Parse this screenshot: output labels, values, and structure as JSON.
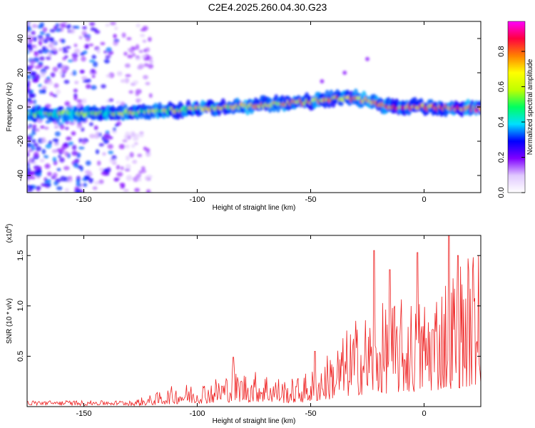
{
  "title": "C2E4.2025.260.04.30.G23",
  "chart_data": [
    {
      "type": "heatmap",
      "xlabel": "Height of straight line (km)",
      "ylabel": "Frequency (Hz)",
      "xlim": [
        -175,
        25
      ],
      "ylim": [
        -50,
        50
      ],
      "xticks": [
        -150,
        -100,
        -50,
        0
      ],
      "yticks": [
        -40,
        -20,
        0,
        20,
        40
      ],
      "ridge": [
        {
          "x": -175,
          "y": -4
        },
        {
          "x": -150,
          "y": -4
        },
        {
          "x": -125,
          "y": -3
        },
        {
          "x": -100,
          "y": -1
        },
        {
          "x": -75,
          "y": 1
        },
        {
          "x": -50,
          "y": 3
        },
        {
          "x": -40,
          "y": 5
        },
        {
          "x": -30,
          "y": 5
        },
        {
          "x": -20,
          "y": 2
        },
        {
          "x": -15,
          "y": 0
        },
        {
          "x": 0,
          "y": 0
        },
        {
          "x": 25,
          "y": -1
        }
      ],
      "upper_branch": [
        {
          "x": -45,
          "y": 15
        },
        {
          "x": -35,
          "y": 20
        },
        {
          "x": -25,
          "y": 28
        }
      ],
      "colorbar": {
        "label": "Normalized spectral amplitude",
        "ticks": [
          "0.0",
          "0.2",
          "0.4",
          "0.6",
          "0.8"
        ],
        "range": [
          0,
          0.97
        ],
        "colors": [
          "#ffffff",
          "#e0c8ff",
          "#8000ff",
          "#0000ff",
          "#00e0ff",
          "#00ff60",
          "#c0ff00",
          "#ffff00",
          "#ff8000",
          "#ff0040",
          "#ff00ff"
        ]
      }
    },
    {
      "type": "line",
      "xlabel": "Height of straight line (km)",
      "ylabel": "SNR (10 * v/v)",
      "scale_label": "(x10",
      "scale_exp": "4",
      "scale_close": ")",
      "xlim": [
        -175,
        25
      ],
      "ylim": [
        0,
        1.7
      ],
      "xticks": [
        -150,
        -100,
        -50,
        0
      ],
      "yticks": [
        "0.5",
        "1.0",
        "1.5"
      ],
      "color": "#ee2222",
      "envelope": [
        {
          "x": -175,
          "y": 0.04
        },
        {
          "x": -130,
          "y": 0.05
        },
        {
          "x": -120,
          "y": 0.1
        },
        {
          "x": -110,
          "y": 0.18
        },
        {
          "x": -95,
          "y": 0.22
        },
        {
          "x": -85,
          "y": 0.3
        },
        {
          "x": -70,
          "y": 0.3
        },
        {
          "x": -60,
          "y": 0.22
        },
        {
          "x": -50,
          "y": 0.3
        },
        {
          "x": -40,
          "y": 0.5
        },
        {
          "x": -30,
          "y": 0.75
        },
        {
          "x": -20,
          "y": 0.85
        },
        {
          "x": -10,
          "y": 0.9
        },
        {
          "x": 0,
          "y": 0.95
        },
        {
          "x": 10,
          "y": 1.15
        },
        {
          "x": 20,
          "y": 1.3
        },
        {
          "x": 25,
          "y": 1.45
        }
      ],
      "peaks": [
        {
          "x": -22,
          "y": 1.55
        },
        {
          "x": -15,
          "y": 1.36
        },
        {
          "x": -3,
          "y": 1.53
        },
        {
          "x": 11,
          "y": 1.7
        },
        {
          "x": 15,
          "y": 1.5
        },
        {
          "x": 24,
          "y": 1.5
        },
        {
          "x": -84,
          "y": 0.49
        },
        {
          "x": -48,
          "y": 0.55
        }
      ]
    }
  ]
}
